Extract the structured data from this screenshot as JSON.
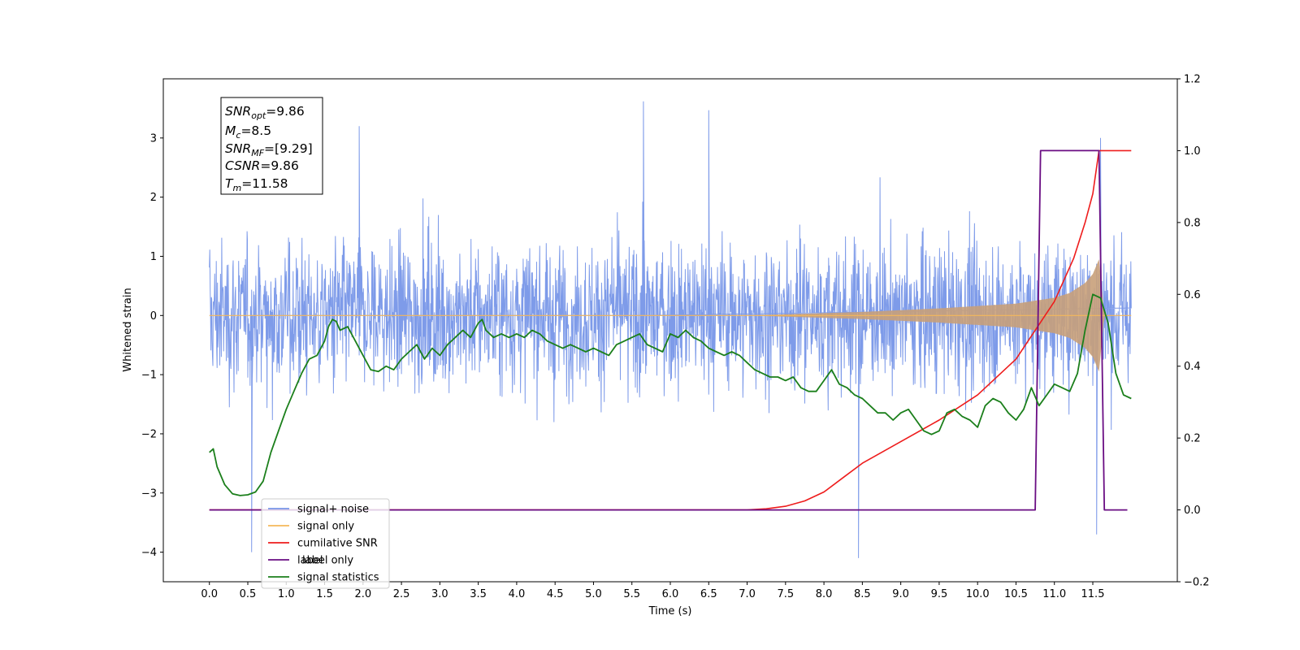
{
  "chart_data": {
    "type": "line",
    "title": "",
    "xlabel": "Time (s)",
    "ylabel": "Whitened strain",
    "ylabel_right": "",
    "xlim": [
      -0.6,
      12.6
    ],
    "ylim": [
      -4.5,
      4.0
    ],
    "ylim_right": [
      -0.2,
      1.2
    ],
    "grid": false,
    "legend_position": "lower-left",
    "x_ticks": [
      "0.0",
      "0.5",
      "1.0",
      "1.5",
      "2.0",
      "2.5",
      "3.0",
      "3.5",
      "4.0",
      "4.5",
      "5.0",
      "5.5",
      "6.0",
      "6.5",
      "7.0",
      "7.5",
      "8.0",
      "8.5",
      "9.0",
      "9.5",
      "10.0",
      "10.5",
      "11.0",
      "11.5"
    ],
    "y_ticks_left": [
      "3",
      "2",
      "1",
      "0",
      "−1",
      "−2",
      "−3",
      "−4"
    ],
    "y_ticks_right": [
      "1.2",
      "1.0",
      "0.8",
      "0.6",
      "0.4",
      "0.2",
      "0.0",
      "−0.2"
    ],
    "annotation": {
      "snr_opt": {
        "base": "SNR",
        "sub": "opt",
        "value": "=9.86"
      },
      "mc": {
        "base": "M",
        "sub": "c",
        "value": "=8.5"
      },
      "snr_mf": {
        "base": "SNR",
        "sub": "MF",
        "value": "=[9.29]"
      },
      "csnr": {
        "base": "CSNR",
        "sub": "",
        "value": "=9.86"
      },
      "tm": {
        "base": "T",
        "sub": "m",
        "value": "=11.58"
      }
    },
    "series": [
      {
        "name": "signal+ noise",
        "axis": "left",
        "color": "#7796e8",
        "x_range": [
          0.0,
          12.0
        ],
        "noise_std": 0.75,
        "noise_max": 3.62,
        "noise_min": -4.1,
        "peaks": [
          [
            5.65,
            3.62
          ],
          [
            6.5,
            3.47
          ],
          [
            1.95,
            3.2
          ],
          [
            11.6,
            3.0
          ],
          [
            11.55,
            -3.7
          ],
          [
            8.45,
            -4.1
          ],
          [
            0.55,
            -4.0
          ]
        ]
      },
      {
        "name": "signal only",
        "axis": "left",
        "color": "#f5b85a",
        "fill_color": "#c8a07a",
        "x": [
          0.0,
          7.0,
          7.5,
          8.0,
          8.5,
          9.0,
          9.5,
          10.0,
          10.5,
          11.0,
          11.2,
          11.4,
          11.5,
          11.58,
          11.65,
          12.0
        ],
        "envelope": [
          0.0,
          0.0,
          0.02,
          0.04,
          0.06,
          0.09,
          0.12,
          0.16,
          0.2,
          0.3,
          0.38,
          0.55,
          0.7,
          0.95,
          0.0,
          0.0
        ]
      },
      {
        "name": "cumilative SNR",
        "axis": "right",
        "color": "#ee1c1c",
        "x": [
          0.0,
          7.0,
          7.25,
          7.5,
          7.75,
          8.0,
          8.25,
          8.5,
          9.0,
          9.5,
          10.0,
          10.5,
          11.0,
          11.25,
          11.4,
          11.5,
          11.58,
          12.0
        ],
        "values": [
          0.0,
          0.0,
          0.003,
          0.01,
          0.025,
          0.05,
          0.09,
          0.13,
          0.19,
          0.25,
          0.32,
          0.42,
          0.58,
          0.7,
          0.8,
          0.88,
          1.0,
          1.0
        ]
      },
      {
        "name": "label",
        "axis": "right",
        "color": "#6a0d83",
        "x": [
          0.0,
          10.75,
          10.82,
          11.55,
          11.58,
          11.65,
          11.95
        ],
        "values": [
          0.0,
          0.0,
          1.0,
          1.0,
          1.0,
          0.0,
          0.0
        ]
      },
      {
        "name": "label only",
        "axis": "right",
        "color": "#c9b6d0",
        "x": [],
        "values": []
      },
      {
        "name": "signal statistics",
        "axis": "right",
        "color": "#1b7f1b",
        "x": [
          0.0,
          0.05,
          0.1,
          0.2,
          0.3,
          0.4,
          0.5,
          0.6,
          0.7,
          0.8,
          0.9,
          1.0,
          1.1,
          1.2,
          1.3,
          1.4,
          1.5,
          1.55,
          1.6,
          1.65,
          1.7,
          1.8,
          1.9,
          2.0,
          2.1,
          2.2,
          2.3,
          2.4,
          2.5,
          2.6,
          2.7,
          2.8,
          2.9,
          3.0,
          3.1,
          3.2,
          3.3,
          3.4,
          3.5,
          3.55,
          3.6,
          3.7,
          3.8,
          3.9,
          4.0,
          4.1,
          4.2,
          4.3,
          4.4,
          4.5,
          4.6,
          4.7,
          4.8,
          4.9,
          5.0,
          5.1,
          5.2,
          5.3,
          5.4,
          5.5,
          5.6,
          5.7,
          5.8,
          5.9,
          6.0,
          6.1,
          6.2,
          6.3,
          6.4,
          6.5,
          6.6,
          6.7,
          6.8,
          6.9,
          7.0,
          7.1,
          7.2,
          7.3,
          7.4,
          7.5,
          7.6,
          7.7,
          7.8,
          7.9,
          8.0,
          8.1,
          8.2,
          8.3,
          8.4,
          8.5,
          8.6,
          8.7,
          8.8,
          8.9,
          9.0,
          9.1,
          9.2,
          9.3,
          9.4,
          9.5,
          9.6,
          9.7,
          9.8,
          9.9,
          10.0,
          10.1,
          10.2,
          10.3,
          10.4,
          10.5,
          10.6,
          10.7,
          10.8,
          10.9,
          11.0,
          11.1,
          11.2,
          11.3,
          11.4,
          11.5,
          11.6,
          11.7,
          11.8,
          11.9,
          12.0
        ],
        "values": [
          0.16,
          0.17,
          0.12,
          0.07,
          0.045,
          0.04,
          0.042,
          0.05,
          0.08,
          0.16,
          0.22,
          0.28,
          0.33,
          0.38,
          0.42,
          0.43,
          0.47,
          0.51,
          0.53,
          0.525,
          0.5,
          0.51,
          0.47,
          0.43,
          0.39,
          0.385,
          0.4,
          0.39,
          0.42,
          0.44,
          0.46,
          0.42,
          0.45,
          0.43,
          0.46,
          0.48,
          0.5,
          0.48,
          0.52,
          0.53,
          0.5,
          0.48,
          0.49,
          0.48,
          0.49,
          0.48,
          0.5,
          0.49,
          0.47,
          0.46,
          0.45,
          0.46,
          0.45,
          0.44,
          0.45,
          0.44,
          0.43,
          0.46,
          0.47,
          0.48,
          0.49,
          0.46,
          0.45,
          0.44,
          0.49,
          0.48,
          0.5,
          0.48,
          0.47,
          0.45,
          0.44,
          0.43,
          0.44,
          0.43,
          0.41,
          0.39,
          0.38,
          0.37,
          0.37,
          0.36,
          0.37,
          0.34,
          0.33,
          0.33,
          0.36,
          0.39,
          0.35,
          0.34,
          0.32,
          0.31,
          0.29,
          0.27,
          0.27,
          0.25,
          0.27,
          0.28,
          0.25,
          0.22,
          0.21,
          0.22,
          0.27,
          0.28,
          0.26,
          0.25,
          0.23,
          0.29,
          0.31,
          0.3,
          0.27,
          0.25,
          0.28,
          0.34,
          0.29,
          0.32,
          0.35,
          0.34,
          0.33,
          0.38,
          0.5,
          0.6,
          0.59,
          0.52,
          0.38,
          0.32,
          0.31
        ]
      }
    ]
  }
}
